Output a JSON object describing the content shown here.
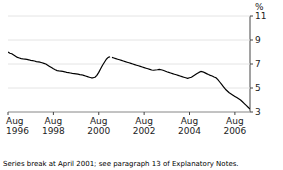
{
  "chart_data": {
    "type": "line",
    "ylabel": "%",
    "footnote": "Series break at April 2001; see paragraph 13 of Explanatory Notes.",
    "ylim": [
      3,
      11
    ],
    "yticks": [
      3,
      5,
      7,
      9,
      11
    ],
    "categories": [
      "Aug\n1996",
      null,
      null,
      null,
      null,
      null,
      null,
      null,
      null,
      null,
      null,
      null,
      null,
      null,
      null,
      null,
      null,
      null,
      null,
      null,
      null,
      null,
      null,
      null,
      "Aug\n1998",
      null,
      null,
      null,
      null,
      null,
      null,
      null,
      null,
      null,
      null,
      null,
      null,
      null,
      null,
      null,
      null,
      null,
      null,
      null,
      null,
      null,
      null,
      null,
      "Aug\n2000",
      null,
      null,
      null,
      null,
      null,
      null,
      null,
      null,
      null,
      null,
      null,
      null,
      null,
      null,
      null,
      null,
      null,
      null,
      null,
      null,
      null,
      null,
      null,
      "Aug\n2002",
      null,
      null,
      null,
      null,
      null,
      null,
      null,
      null,
      null,
      null,
      null,
      null,
      null,
      null,
      null,
      null,
      null,
      null,
      null,
      null,
      null,
      null,
      null,
      "Aug\n2004",
      null,
      null,
      null,
      null,
      null,
      null,
      null,
      null,
      null,
      null,
      null,
      null,
      null,
      null,
      null,
      null,
      null,
      null,
      null,
      null,
      null,
      null,
      null,
      "Aug\n2006",
      null,
      null,
      null,
      null,
      null,
      null,
      null,
      null
    ],
    "series": [
      {
        "color": "#000000",
        "values": [
          8.0,
          7.9,
          7.85,
          7.75,
          7.65,
          7.55,
          7.5,
          7.45,
          7.42,
          7.4,
          7.38,
          7.35,
          7.3,
          7.28,
          7.25,
          7.2,
          7.18,
          7.15,
          7.1,
          7.05,
          7.0,
          6.9,
          6.8,
          6.7,
          6.6,
          6.52,
          6.45,
          6.42,
          6.4,
          6.38,
          6.35,
          6.3,
          6.28,
          6.25,
          6.22,
          6.2,
          6.18,
          6.15,
          6.12,
          6.1,
          6.05,
          6.0,
          5.95,
          5.9,
          5.85,
          5.85,
          5.9,
          6.05,
          6.3,
          6.6,
          6.9,
          7.15,
          7.4,
          7.55,
          7.6,
          null,
          null,
          null,
          null,
          null,
          null,
          null,
          null,
          null,
          null,
          null,
          null,
          null,
          null,
          null,
          null,
          null,
          null,
          null,
          null,
          null,
          null,
          null,
          null,
          null,
          null,
          null,
          null,
          null,
          null,
          null,
          null,
          null,
          null,
          null,
          null,
          null,
          null,
          null,
          null,
          null,
          null,
          null,
          null,
          null,
          null,
          null,
          null,
          null,
          null,
          null,
          null,
          null,
          null,
          null,
          null,
          null,
          null,
          null,
          null,
          null,
          null,
          null,
          null,
          null,
          null,
          null,
          null,
          null,
          null,
          null,
          null,
          null,
          null
        ]
      },
      {
        "color": "#000000",
        "values": [
          null,
          null,
          null,
          null,
          null,
          null,
          null,
          null,
          null,
          null,
          null,
          null,
          null,
          null,
          null,
          null,
          null,
          null,
          null,
          null,
          null,
          null,
          null,
          null,
          null,
          null,
          null,
          null,
          null,
          null,
          null,
          null,
          null,
          null,
          null,
          null,
          null,
          null,
          null,
          null,
          null,
          null,
          null,
          null,
          null,
          null,
          null,
          null,
          null,
          null,
          null,
          null,
          null,
          null,
          null,
          7.55,
          7.5,
          7.45,
          7.4,
          7.35,
          7.3,
          7.25,
          7.2,
          7.15,
          7.1,
          7.05,
          7.0,
          6.95,
          6.9,
          6.85,
          6.8,
          6.75,
          6.7,
          6.65,
          6.6,
          6.55,
          6.5,
          6.48,
          6.5,
          6.52,
          6.55,
          6.52,
          6.48,
          6.42,
          6.35,
          6.3,
          6.25,
          6.2,
          6.15,
          6.1,
          6.05,
          6.0,
          5.95,
          5.9,
          5.85,
          5.8,
          5.85,
          5.9,
          6.0,
          6.1,
          6.2,
          6.3,
          6.38,
          6.35,
          6.28,
          6.2,
          6.12,
          6.05,
          6.0,
          5.92,
          5.85,
          5.7,
          5.5,
          5.3,
          5.1,
          4.9,
          4.75,
          4.6,
          4.5,
          4.4,
          4.3,
          4.2,
          4.1,
          4.0,
          3.85,
          3.7,
          3.55,
          3.4,
          3.25
        ]
      }
    ]
  }
}
